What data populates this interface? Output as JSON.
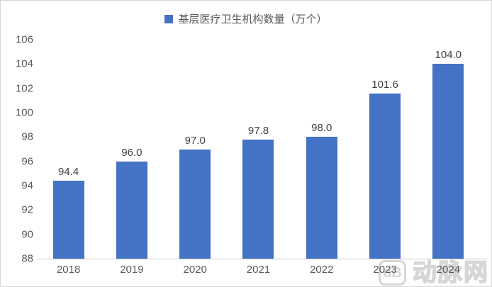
{
  "chart_data": {
    "type": "bar",
    "title": "基层医疗卫生机构数量（万个）",
    "categories": [
      "2018",
      "2019",
      "2020",
      "2021",
      "2022",
      "2023",
      "2024"
    ],
    "values": [
      94.4,
      96.0,
      97.0,
      97.8,
      98.0,
      101.6,
      104.0
    ],
    "value_labels": [
      "94.4",
      "96.0",
      "97.0",
      "97.8",
      "98.0",
      "101.6",
      "104.0"
    ],
    "xlabel": "",
    "ylabel": "",
    "ylim": [
      88,
      106
    ],
    "yticks": [
      88,
      90,
      92,
      94,
      96,
      98,
      100,
      102,
      104,
      106
    ],
    "grid": false,
    "legend_position": "top-center",
    "bar_color": "#4472C4"
  },
  "colors": {
    "bar": "#4472C4",
    "axis_text": "#595959",
    "data_label": "#404040",
    "axis_line": "#c9c9c9",
    "watermark": "#d6d6d6",
    "border": "#d7d7d7",
    "background": "#ffffff"
  },
  "watermark": {
    "logo_text": "dB",
    "text": "动脉网"
  }
}
